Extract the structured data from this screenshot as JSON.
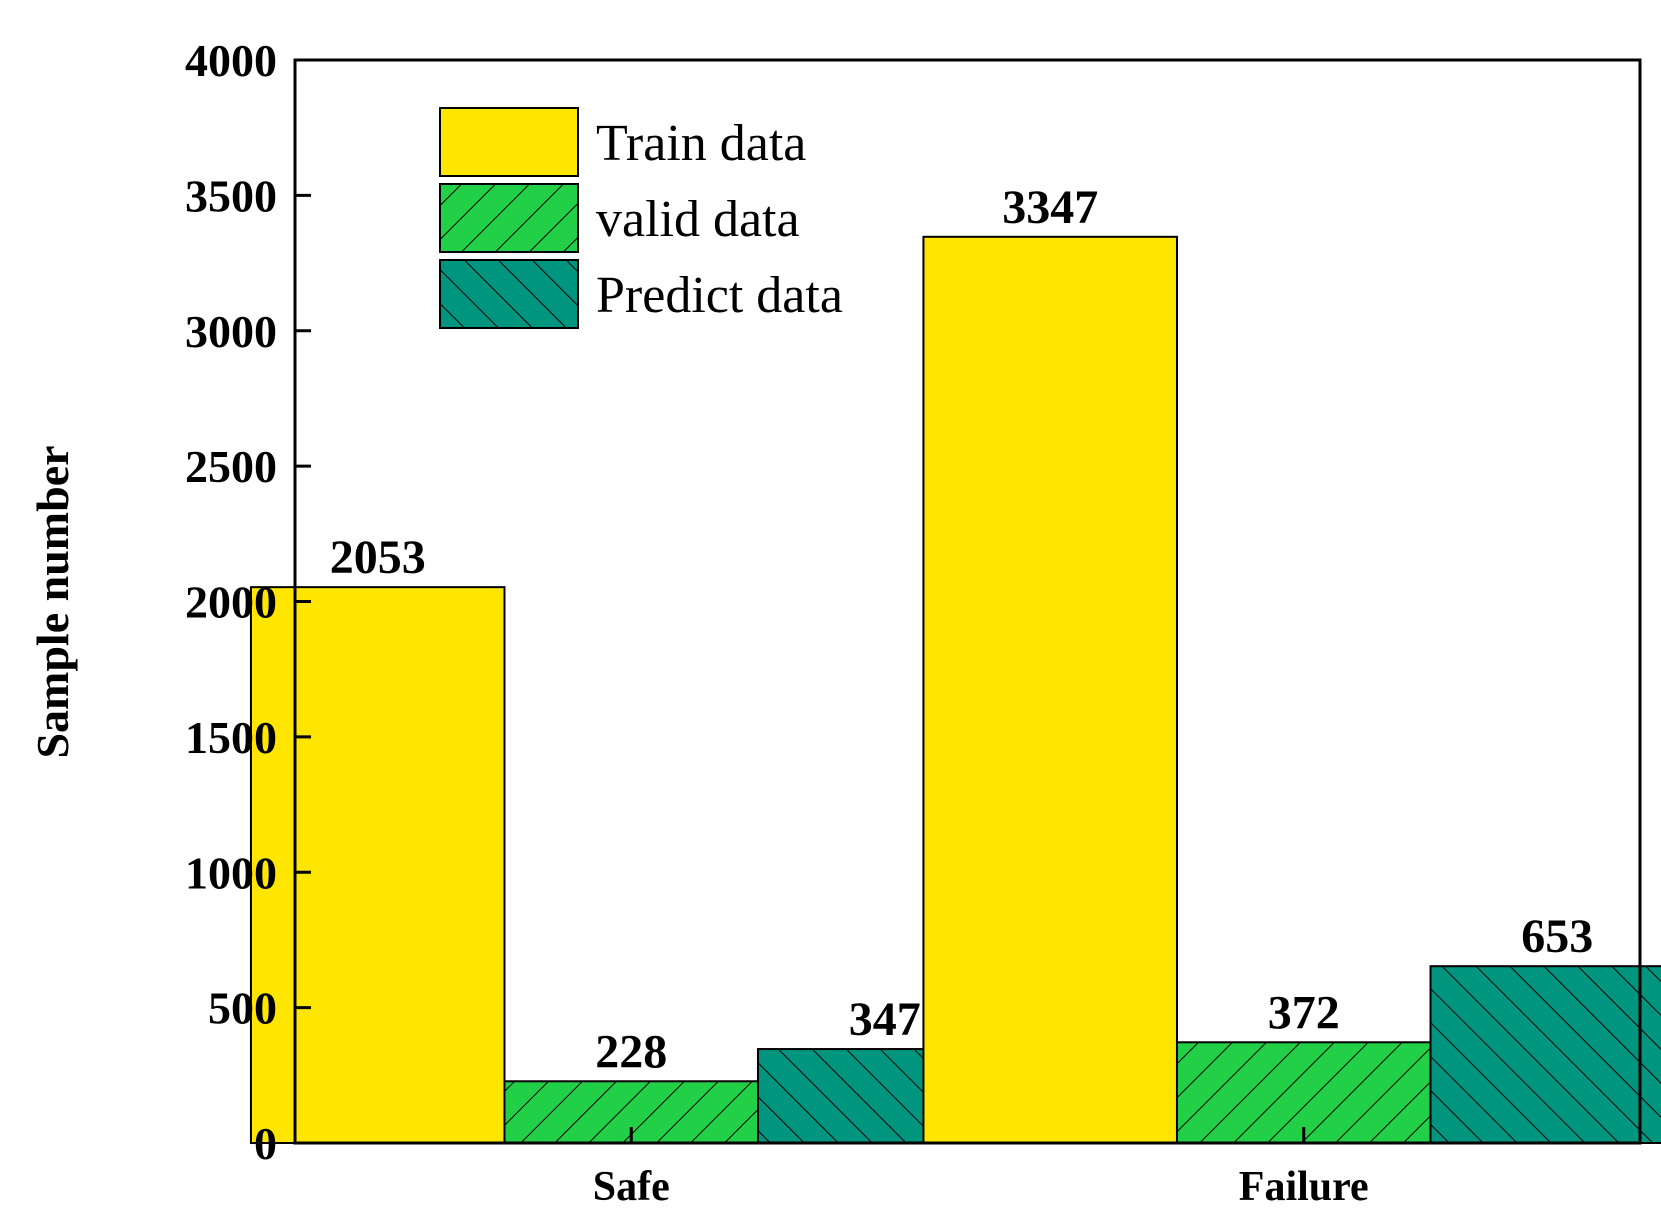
{
  "chart_data": {
    "type": "bar",
    "categories": [
      "Safe",
      "Failure"
    ],
    "series": [
      {
        "name": "Train data",
        "values": [
          2053,
          3347
        ],
        "color": "#FFE600",
        "pattern": "none"
      },
      {
        "name": "valid data",
        "values": [
          228,
          372
        ],
        "color": "#22D048",
        "pattern": "hatch-forward"
      },
      {
        "name": "Predict data",
        "values": [
          347,
          653
        ],
        "color": "#00957F",
        "pattern": "hatch-back"
      }
    ],
    "title": "",
    "xlabel": "",
    "ylabel": "Sample number",
    "ylim": [
      0,
      4000
    ],
    "yticks": [
      0,
      500,
      1000,
      1500,
      2000,
      2500,
      3000,
      3500,
      4000
    ],
    "grid": false,
    "legend_position": "top-left",
    "data_labels": true
  }
}
